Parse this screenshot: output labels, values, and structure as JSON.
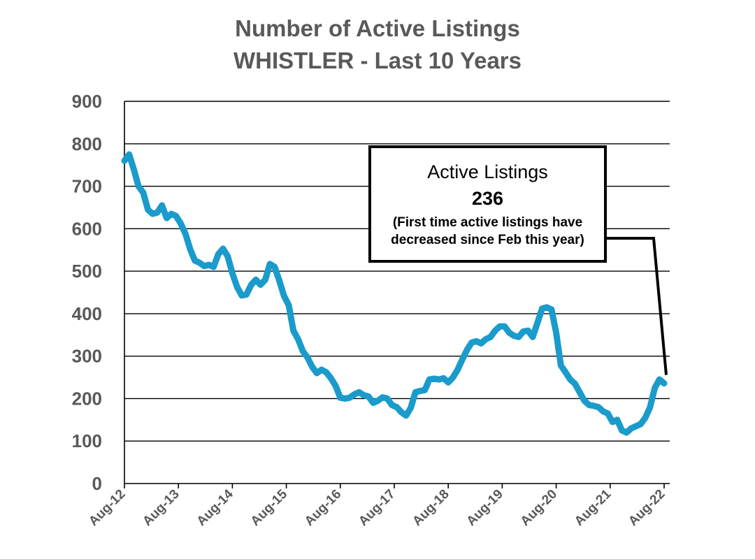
{
  "chart_data": {
    "type": "line",
    "title": [
      "Number of Active Listings",
      "WHISTLER - Last 10 Years"
    ],
    "xlabel": "",
    "ylabel": "",
    "ylim": [
      0,
      900
    ],
    "yticks": [
      "0",
      "100",
      "200",
      "300",
      "400",
      "500",
      "600",
      "700",
      "800",
      "900"
    ],
    "xticks": [
      "Aug-12",
      "Aug-13",
      "Aug-14",
      "Aug-15",
      "Aug-16",
      "Aug-17",
      "Aug-18",
      "Aug-19",
      "Aug-20",
      "Aug-21",
      "Aug-22"
    ],
    "grid": true,
    "line_color": "#1a9bcb",
    "series": [
      {
        "values": [
          760,
          775,
          740,
          700,
          685,
          645,
          635,
          638,
          655,
          625,
          635,
          630,
          612,
          588,
          552,
          525,
          520,
          512,
          515,
          510,
          540,
          553,
          535,
          495,
          463,
          443,
          445,
          468,
          480,
          468,
          480,
          517,
          510,
          478,
          442,
          420,
          360,
          340,
          312,
          297,
          275,
          260,
          268,
          262,
          248,
          230,
          202,
          200,
          202,
          210,
          215,
          208,
          205,
          190,
          195,
          203,
          200,
          185,
          180,
          168,
          160,
          178,
          215,
          218,
          220,
          245,
          247,
          245,
          248,
          238,
          250,
          268,
          292,
          315,
          332,
          335,
          330,
          340,
          345,
          360,
          370,
          370,
          355,
          348,
          345,
          358,
          360,
          345,
          378,
          412,
          415,
          410,
          355,
          278,
          262,
          245,
          235,
          215,
          195,
          185,
          183,
          180,
          170,
          165,
          145,
          150,
          125,
          120,
          130,
          135,
          140,
          155,
          180,
          225,
          245,
          236
        ]
      }
    ],
    "annotation": {
      "title": "Active Listings",
      "value": "236",
      "note_line1": "(First time active listings have",
      "note_line2": "decreased since Feb this year)"
    }
  }
}
